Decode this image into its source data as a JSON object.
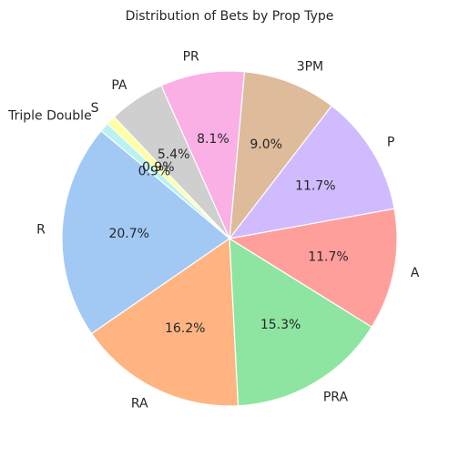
{
  "chart_data": {
    "type": "pie",
    "title": "Distribution of Bets by Prop Type",
    "slices": [
      {
        "label": "R",
        "value": 20.7,
        "pct_label": "20.7%",
        "color": "#a1c9f4"
      },
      {
        "label": "RA",
        "value": 16.2,
        "pct_label": "16.2%",
        "color": "#ffb482"
      },
      {
        "label": "PRA",
        "value": 15.3,
        "pct_label": "15.3%",
        "color": "#8de5a1"
      },
      {
        "label": "A",
        "value": 11.7,
        "pct_label": "11.7%",
        "color": "#ff9f9b"
      },
      {
        "label": "P",
        "value": 11.7,
        "pct_label": "11.7%",
        "color": "#d0bbff"
      },
      {
        "label": "3PM",
        "value": 9.0,
        "pct_label": "9.0%",
        "color": "#debb9b"
      },
      {
        "label": "PR",
        "value": 8.1,
        "pct_label": "8.1%",
        "color": "#fab0e4"
      },
      {
        "label": "PA",
        "value": 5.4,
        "pct_label": "5.4%",
        "color": "#cfcfcf"
      },
      {
        "label": "S",
        "value": 0.9,
        "pct_label": "0.9%",
        "color": "#fffea3"
      },
      {
        "label": "Triple Double",
        "value": 0.9,
        "pct_label": "0.9%",
        "color": "#b9f2f0"
      }
    ],
    "start_angle_deg": 140,
    "direction": "counterclockwise",
    "legend": "none"
  }
}
